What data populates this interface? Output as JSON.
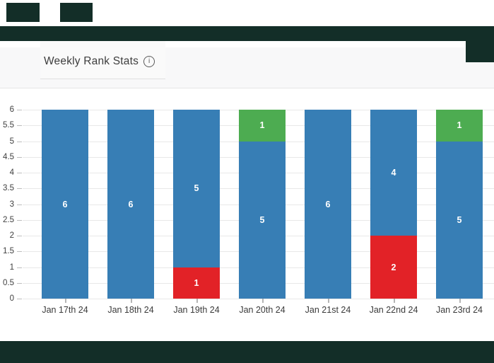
{
  "header": {
    "title": "Weekly Rank Stats",
    "info_glyph": "i"
  },
  "colors": {
    "mask": "#132e28",
    "band_bg": "#f8f8f9",
    "tab_bg": "#fafafa",
    "grid_line": "#e8e8e8",
    "axis_tick": "#bdbdbd",
    "axis_label": "#404040",
    "data_label": "#ffffff",
    "series_blue": "#377eb5",
    "series_green": "#4dac51",
    "series_red": "#e22227"
  },
  "chart_data": {
    "type": "bar",
    "stacked": true,
    "title": "Weekly Rank Stats",
    "xlabel": "",
    "ylabel": "",
    "categories": [
      "Jan 17th 24",
      "Jan 18th 24",
      "Jan 19th 24",
      "Jan 20th 24",
      "Jan 21st 24",
      "Jan 22nd 24",
      "Jan 23rd 24"
    ],
    "series": [
      {
        "name": "green",
        "color": "#4dac51",
        "values": [
          0,
          0,
          0,
          1,
          0,
          0,
          1
        ]
      },
      {
        "name": "blue",
        "color": "#377eb5",
        "values": [
          6,
          6,
          5,
          5,
          6,
          4,
          5
        ]
      },
      {
        "name": "red",
        "color": "#e22227",
        "values": [
          0,
          0,
          1,
          0,
          0,
          2,
          0
        ]
      }
    ],
    "stack_order_top_to_bottom": [
      "green",
      "blue",
      "red"
    ],
    "totals_per_category": [
      6,
      6,
      6,
      6,
      6,
      6,
      6
    ],
    "ylim": [
      0,
      6
    ],
    "yticks": [
      6,
      5.5,
      5,
      4.5,
      4,
      3.5,
      3,
      2.5,
      2,
      1.5,
      1,
      0.5,
      0
    ],
    "grid": true,
    "legend": "none",
    "show_data_labels": true
  }
}
